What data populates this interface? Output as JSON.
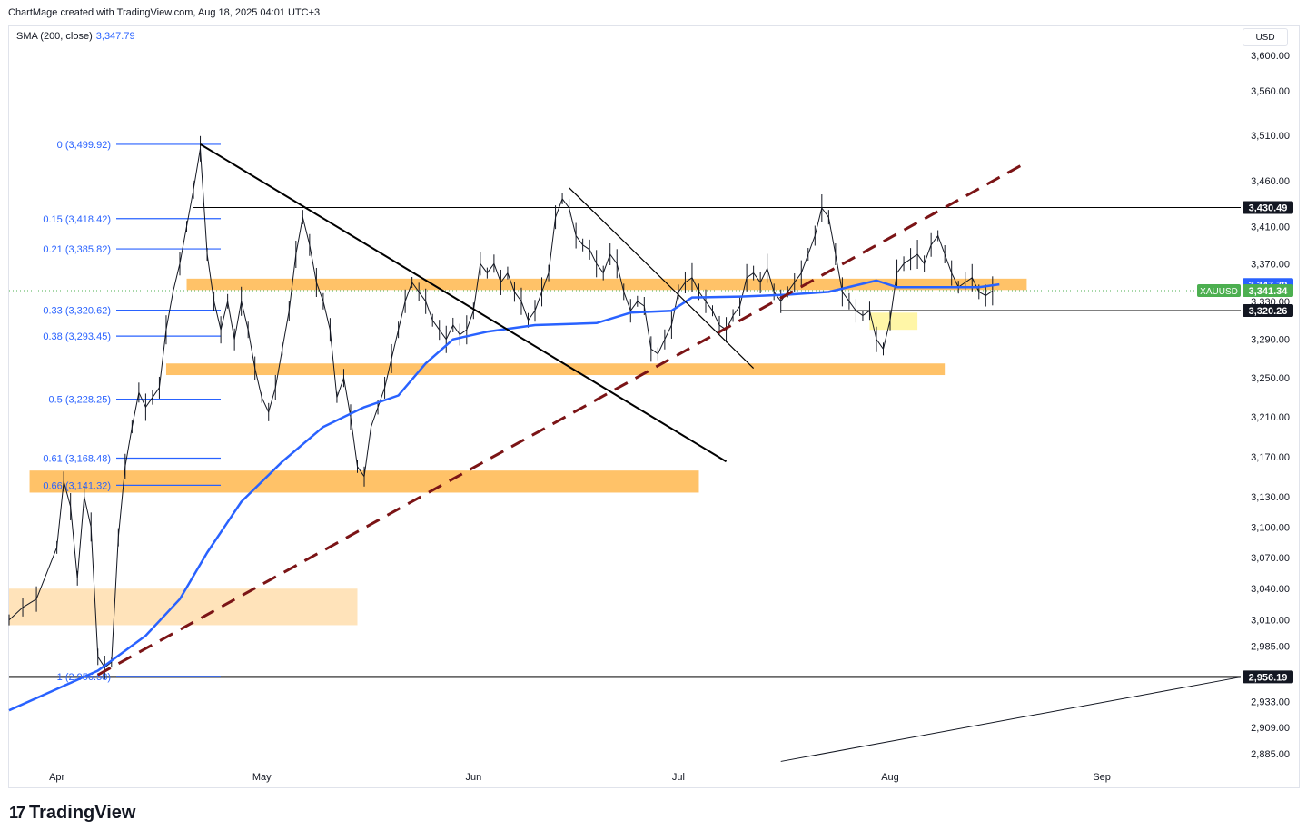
{
  "header": {
    "attribution": "ChartMage created with TradingView.com, Aug 18, 2025 04:01 UTC+3"
  },
  "legend": {
    "sma_label": "SMA (200, close)",
    "sma_value": "3,347.79"
  },
  "currency": "USD",
  "branding": {
    "logo_mark": "17",
    "logo_text": "TradingView"
  },
  "colors": {
    "sma": "#2962ff",
    "zone": "#ffb74d",
    "zone_light": "#ffe0b2",
    "zone_yellow": "#fff59d",
    "fib": "#2962ff",
    "trendline": "#000000",
    "dashed_trend": "#7b1416",
    "price_tag_green": "#4caf50",
    "price_tag_dark": "#131722",
    "price_tag_blue": "#2962ff"
  },
  "chart_data": {
    "type": "line",
    "symbol": "XAUUSD",
    "y_axis": {
      "scale": "log",
      "ticks": [
        "3,600.00",
        "3,560.00",
        "3,510.00",
        "3,460.00",
        "3,410.00",
        "3,370.00",
        "3,330.00",
        "3,290.00",
        "3,250.00",
        "3,210.00",
        "3,170.00",
        "3,130.00",
        "3,100.00",
        "3,070.00",
        "3,040.00",
        "3,010.00",
        "2,985.00",
        "2,933.00",
        "2,909.00",
        "2,885.00"
      ],
      "tick_values": [
        3600,
        3560,
        3510,
        3460,
        3410,
        3370,
        3330,
        3290,
        3250,
        3210,
        3170,
        3130,
        3100,
        3070,
        3040,
        3010,
        2985,
        2933,
        2909,
        2885
      ],
      "range": [
        2876,
        3622
      ]
    },
    "x_axis": {
      "ticks": [
        "Apr",
        "May",
        "Jun",
        "Jul",
        "Aug",
        "Sep"
      ],
      "tick_dates": [
        "2025-04-01",
        "2025-05-01",
        "2025-06-01",
        "2025-07-01",
        "2025-08-01",
        "2025-09-01"
      ],
      "range": [
        "2025-03-25",
        "2025-09-20"
      ]
    },
    "series": [
      {
        "name": "SMA (200, close)",
        "points": [
          [
            "2025-03-25",
            2925
          ],
          [
            "2025-04-07",
            2962
          ],
          [
            "2025-04-14",
            2995
          ],
          [
            "2025-04-19",
            3030
          ],
          [
            "2025-04-23",
            3075
          ],
          [
            "2025-04-28",
            3125
          ],
          [
            "2025-05-04",
            3165
          ],
          [
            "2025-05-10",
            3200
          ],
          [
            "2025-05-16",
            3220
          ],
          [
            "2025-05-21",
            3232
          ],
          [
            "2025-05-25",
            3265
          ],
          [
            "2025-05-29",
            3290
          ],
          [
            "2025-06-03",
            3298
          ],
          [
            "2025-06-10",
            3305
          ],
          [
            "2025-06-19",
            3307
          ],
          [
            "2025-06-24",
            3318
          ],
          [
            "2025-06-30",
            3320
          ],
          [
            "2025-07-03",
            3334
          ],
          [
            "2025-07-10",
            3335
          ],
          [
            "2025-07-17",
            3337
          ],
          [
            "2025-07-23",
            3340
          ],
          [
            "2025-07-30",
            3352
          ],
          [
            "2025-08-02",
            3345
          ],
          [
            "2025-08-08",
            3345
          ],
          [
            "2025-08-14",
            3345
          ],
          [
            "2025-08-17",
            3348
          ]
        ]
      },
      {
        "name": "XAUUSD",
        "points": [
          [
            "2025-03-25",
            3010
          ],
          [
            "2025-03-27",
            3022
          ],
          [
            "2025-03-29",
            3030
          ],
          [
            "2025-04-01",
            3080
          ],
          [
            "2025-04-02",
            3145
          ],
          [
            "2025-04-03",
            3120
          ],
          [
            "2025-04-04",
            3050
          ],
          [
            "2025-04-05",
            3130
          ],
          [
            "2025-04-06",
            3100
          ],
          [
            "2025-04-07",
            2975
          ],
          [
            "2025-04-08",
            2965
          ],
          [
            "2025-04-09",
            2970
          ],
          [
            "2025-04-10",
            3090
          ],
          [
            "2025-04-11",
            3160
          ],
          [
            "2025-04-12",
            3200
          ],
          [
            "2025-04-13",
            3235
          ],
          [
            "2025-04-14",
            3220
          ],
          [
            "2025-04-15",
            3230
          ],
          [
            "2025-04-16",
            3240
          ],
          [
            "2025-04-17",
            3300
          ],
          [
            "2025-04-18",
            3340
          ],
          [
            "2025-04-19",
            3370
          ],
          [
            "2025-04-20",
            3410
          ],
          [
            "2025-04-21",
            3450
          ],
          [
            "2025-04-22",
            3495
          ],
          [
            "2025-04-23",
            3380
          ],
          [
            "2025-04-24",
            3330
          ],
          [
            "2025-04-25",
            3300
          ],
          [
            "2025-04-26",
            3330
          ],
          [
            "2025-04-27",
            3290
          ],
          [
            "2025-04-28",
            3330
          ],
          [
            "2025-04-29",
            3300
          ],
          [
            "2025-04-30",
            3260
          ],
          [
            "2025-05-01",
            3230
          ],
          [
            "2025-05-02",
            3215
          ],
          [
            "2025-05-03",
            3240
          ],
          [
            "2025-05-04",
            3280
          ],
          [
            "2025-05-05",
            3320
          ],
          [
            "2025-05-06",
            3380
          ],
          [
            "2025-05-07",
            3420
          ],
          [
            "2025-05-08",
            3390
          ],
          [
            "2025-05-09",
            3350
          ],
          [
            "2025-05-10",
            3330
          ],
          [
            "2025-05-11",
            3300
          ],
          [
            "2025-05-12",
            3230
          ],
          [
            "2025-05-13",
            3250
          ],
          [
            "2025-05-14",
            3210
          ],
          [
            "2025-05-15",
            3160
          ],
          [
            "2025-05-16",
            3150
          ],
          [
            "2025-05-17",
            3200
          ],
          [
            "2025-05-18",
            3220
          ],
          [
            "2025-05-19",
            3240
          ],
          [
            "2025-05-20",
            3270
          ],
          [
            "2025-05-21",
            3300
          ],
          [
            "2025-05-22",
            3330
          ],
          [
            "2025-05-23",
            3350
          ],
          [
            "2025-05-24",
            3340
          ],
          [
            "2025-05-25",
            3330
          ],
          [
            "2025-05-26",
            3310
          ],
          [
            "2025-05-27",
            3300
          ],
          [
            "2025-05-28",
            3290
          ],
          [
            "2025-05-29",
            3305
          ],
          [
            "2025-05-30",
            3295
          ],
          [
            "2025-05-31",
            3300
          ],
          [
            "2025-06-01",
            3320
          ],
          [
            "2025-06-02",
            3370
          ],
          [
            "2025-06-03",
            3360
          ],
          [
            "2025-06-04",
            3370
          ],
          [
            "2025-06-05",
            3350
          ],
          [
            "2025-06-06",
            3360
          ],
          [
            "2025-06-07",
            3340
          ],
          [
            "2025-06-08",
            3330
          ],
          [
            "2025-06-09",
            3310
          ],
          [
            "2025-06-10",
            3320
          ],
          [
            "2025-06-11",
            3340
          ],
          [
            "2025-06-12",
            3360
          ],
          [
            "2025-06-13",
            3420
          ],
          [
            "2025-06-14",
            3440
          ],
          [
            "2025-06-15",
            3430
          ],
          [
            "2025-06-16",
            3400
          ],
          [
            "2025-06-17",
            3390
          ],
          [
            "2025-06-18",
            3385
          ],
          [
            "2025-06-19",
            3370
          ],
          [
            "2025-06-20",
            3360
          ],
          [
            "2025-06-21",
            3380
          ],
          [
            "2025-06-22",
            3370
          ],
          [
            "2025-06-23",
            3340
          ],
          [
            "2025-06-24",
            3320
          ],
          [
            "2025-06-25",
            3330
          ],
          [
            "2025-06-26",
            3325
          ],
          [
            "2025-06-27",
            3280
          ],
          [
            "2025-06-28",
            3275
          ],
          [
            "2025-06-29",
            3290
          ],
          [
            "2025-06-30",
            3305
          ],
          [
            "2025-07-01",
            3340
          ],
          [
            "2025-07-02",
            3350
          ],
          [
            "2025-07-03",
            3355
          ],
          [
            "2025-07-04",
            3340
          ],
          [
            "2025-07-05",
            3330
          ],
          [
            "2025-07-06",
            3320
          ],
          [
            "2025-07-07",
            3305
          ],
          [
            "2025-07-08",
            3300
          ],
          [
            "2025-07-09",
            3315
          ],
          [
            "2025-07-10",
            3325
          ],
          [
            "2025-07-11",
            3355
          ],
          [
            "2025-07-12",
            3360
          ],
          [
            "2025-07-13",
            3350
          ],
          [
            "2025-07-14",
            3365
          ],
          [
            "2025-07-15",
            3340
          ],
          [
            "2025-07-16",
            3330
          ],
          [
            "2025-07-17",
            3340
          ],
          [
            "2025-07-18",
            3350
          ],
          [
            "2025-07-19",
            3360
          ],
          [
            "2025-07-20",
            3380
          ],
          [
            "2025-07-21",
            3400
          ],
          [
            "2025-07-22",
            3430
          ],
          [
            "2025-07-23",
            3420
          ],
          [
            "2025-07-24",
            3380
          ],
          [
            "2025-07-25",
            3340
          ],
          [
            "2025-07-26",
            3330
          ],
          [
            "2025-07-27",
            3320
          ],
          [
            "2025-07-28",
            3315
          ],
          [
            "2025-07-29",
            3320
          ],
          [
            "2025-07-30",
            3290
          ],
          [
            "2025-07-31",
            3280
          ],
          [
            "2025-08-01",
            3310
          ],
          [
            "2025-08-02",
            3360
          ],
          [
            "2025-08-03",
            3370
          ],
          [
            "2025-08-04",
            3375
          ],
          [
            "2025-08-05",
            3380
          ],
          [
            "2025-08-06",
            3370
          ],
          [
            "2025-08-07",
            3390
          ],
          [
            "2025-08-08",
            3400
          ],
          [
            "2025-08-09",
            3380
          ],
          [
            "2025-08-10",
            3360
          ],
          [
            "2025-08-11",
            3345
          ],
          [
            "2025-08-12",
            3350
          ],
          [
            "2025-08-13",
            3355
          ],
          [
            "2025-08-14",
            3340
          ],
          [
            "2025-08-15",
            3336
          ],
          [
            "2025-08-16",
            3341
          ]
        ]
      }
    ],
    "fibonacci": [
      {
        "label": "0 (3,499.92)",
        "value": 3499.92
      },
      {
        "label": "0.15 (3,418.42)",
        "value": 3418.42
      },
      {
        "label": "0.21 (3,385.82)",
        "value": 3385.82
      },
      {
        "label": "0.33 (3,320.62)",
        "value": 3320.62
      },
      {
        "label": "0.38 (3,293.45)",
        "value": 3293.45
      },
      {
        "label": "0.5 (3,228.25)",
        "value": 3228.25
      },
      {
        "label": "0.61 (3,168.48)",
        "value": 3168.48
      },
      {
        "label": "0.66 (3,141.32)",
        "value": 3141.32
      },
      {
        "label": "1 (2,956.58)",
        "value": 2956.58
      }
    ],
    "zones": [
      {
        "from": "2025-04-20",
        "to": "2025-08-21",
        "low": 3342,
        "high": 3354,
        "style": "zone"
      },
      {
        "from": "2025-04-17",
        "to": "2025-08-09",
        "low": 3253,
        "high": 3265,
        "style": "zone"
      },
      {
        "from": "2025-03-28",
        "to": "2025-07-04",
        "low": 3134,
        "high": 3156,
        "style": "zone"
      },
      {
        "from": "2025-03-25",
        "to": "2025-05-15",
        "low": 3005,
        "high": 3040,
        "style": "zone_light"
      },
      {
        "from": "2025-07-29",
        "to": "2025-08-05",
        "low": 3300,
        "high": 3318,
        "style": "zone_yellow"
      }
    ],
    "price_tags": [
      {
        "label": "3,430.49",
        "value": 3430.49,
        "style": "dark"
      },
      {
        "label": "3,347.79",
        "value": 3347.79,
        "style": "blue"
      },
      {
        "label": "3,341.34",
        "value": 3341.34,
        "style": "green",
        "symbol": "XAUUSD"
      },
      {
        "label": "3,320.26",
        "value": 3320.26,
        "style": "dark"
      },
      {
        "label": "2,956.19",
        "value": 2956.19,
        "style": "dark"
      }
    ]
  }
}
